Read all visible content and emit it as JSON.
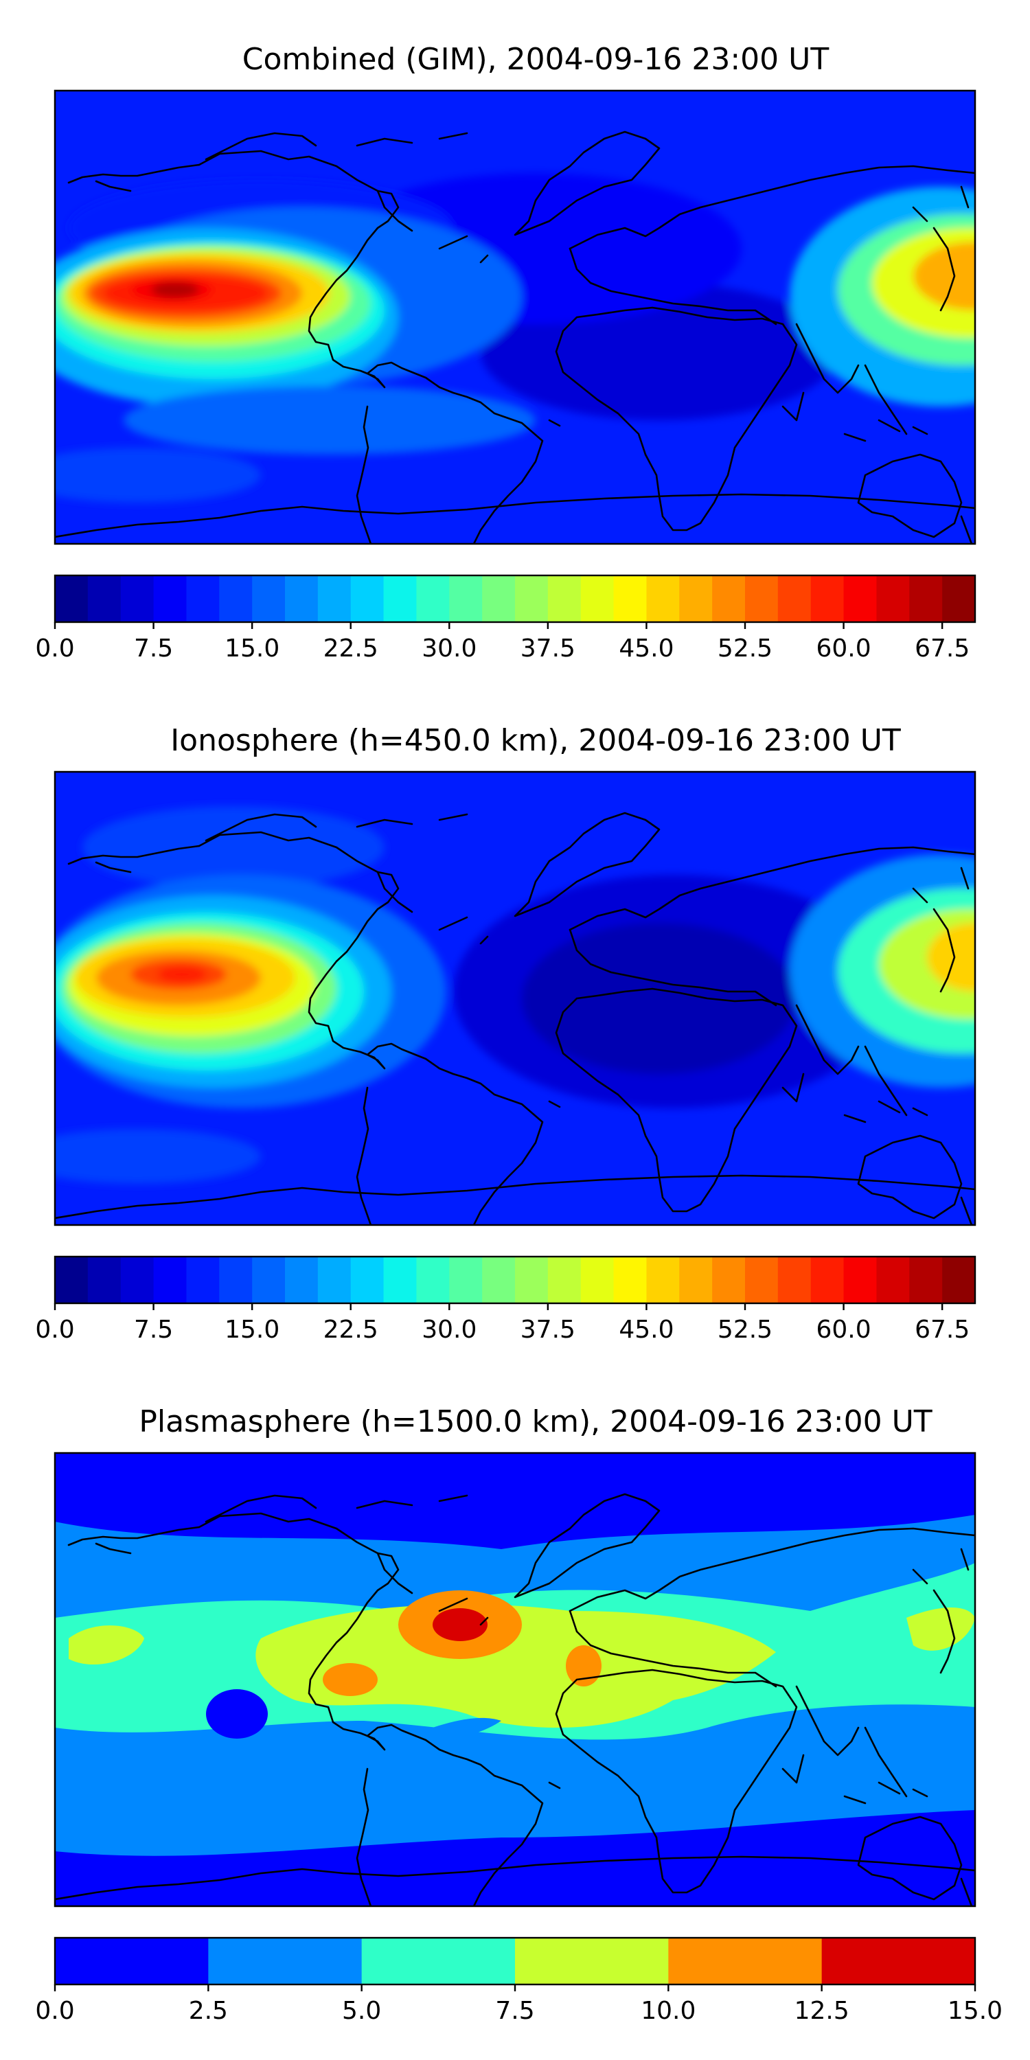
{
  "figure_title_text": "",
  "panels": [
    {
      "title": "Combined (GIM), 2004-09-16 23:00 UT",
      "colorbar": {
        "ticks": [
          "0.0",
          "7.5",
          "15.0",
          "22.5",
          "30.0",
          "37.5",
          "45.0",
          "52.5",
          "60.0",
          "67.5"
        ],
        "vmin": 0,
        "vmax": 70,
        "levels": 28
      }
    },
    {
      "title": "Ionosphere  (h=450.0 km), 2004-09-16 23:00 UT",
      "colorbar": {
        "ticks": [
          "0.0",
          "7.5",
          "15.0",
          "22.5",
          "30.0",
          "37.5",
          "45.0",
          "52.5",
          "60.0",
          "67.5"
        ],
        "vmin": 0,
        "vmax": 70,
        "levels": 28
      }
    },
    {
      "title": "Plasmasphere (h=1500.0 km), 2004-09-16 23:00 UT",
      "colorbar": {
        "ticks": [
          "0.0",
          "2.5",
          "5.0",
          "7.5",
          "10.0",
          "12.5",
          "15.0"
        ],
        "vmin": 0,
        "vmax": 15,
        "levels": 6
      }
    }
  ],
  "colors": {
    "jet28": [
      "#00008f",
      "#0000b2",
      "#0000d6",
      "#0000f9",
      "#001cff",
      "#0040ff",
      "#0064ff",
      "#0088ff",
      "#00acff",
      "#00d0ff",
      "#0cf4eb",
      "#30ffc7",
      "#54ffa3",
      "#78ff7f",
      "#9cff5b",
      "#c0ff37",
      "#e4ff13",
      "#fff600",
      "#ffd200",
      "#ffae00",
      "#ff8a00",
      "#ff6600",
      "#ff4200",
      "#ff1e00",
      "#f90000",
      "#d60000",
      "#b20000",
      "#8f0000"
    ],
    "plasma6": [
      "#0000ff",
      "#0088ff",
      "#2fffc8",
      "#c8ff2f",
      "#ff9000",
      "#d90000"
    ]
  }
}
